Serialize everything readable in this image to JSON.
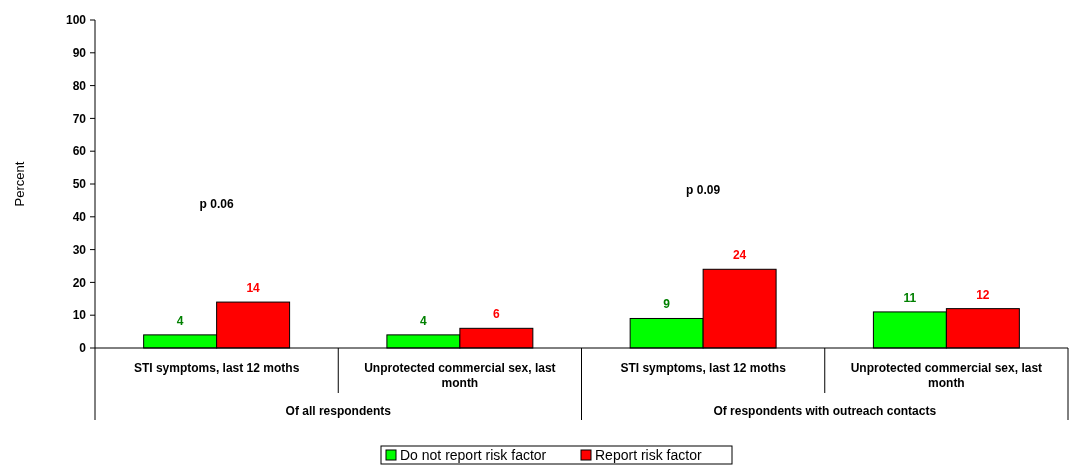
{
  "chart_data": {
    "type": "bar",
    "ylabel": "Percent",
    "categories": [
      "STI symptoms, last 12 moths",
      "Unprotected commercial sex, last month",
      "STI symptoms, last 12 moths",
      "Unprotected commercial sex, last month"
    ],
    "series": [
      {
        "name": "Do not report risk factor",
        "color": "#00ff00",
        "values": [
          4,
          4,
          9,
          11
        ]
      },
      {
        "name": "Report risk factor",
        "color": "#ff0000",
        "values": [
          14,
          6,
          24,
          12
        ]
      }
    ],
    "data_labels": true,
    "ylim": [
      0,
      100
    ],
    "yticks": [
      0,
      10,
      20,
      30,
      40,
      50,
      60,
      70,
      80,
      90,
      100
    ],
    "grid": false,
    "legend": "bottom",
    "annotations": [
      "p 0.06",
      "p 0.09",
      "Of all respondents",
      "Of respondents with outreach contacts"
    ]
  }
}
